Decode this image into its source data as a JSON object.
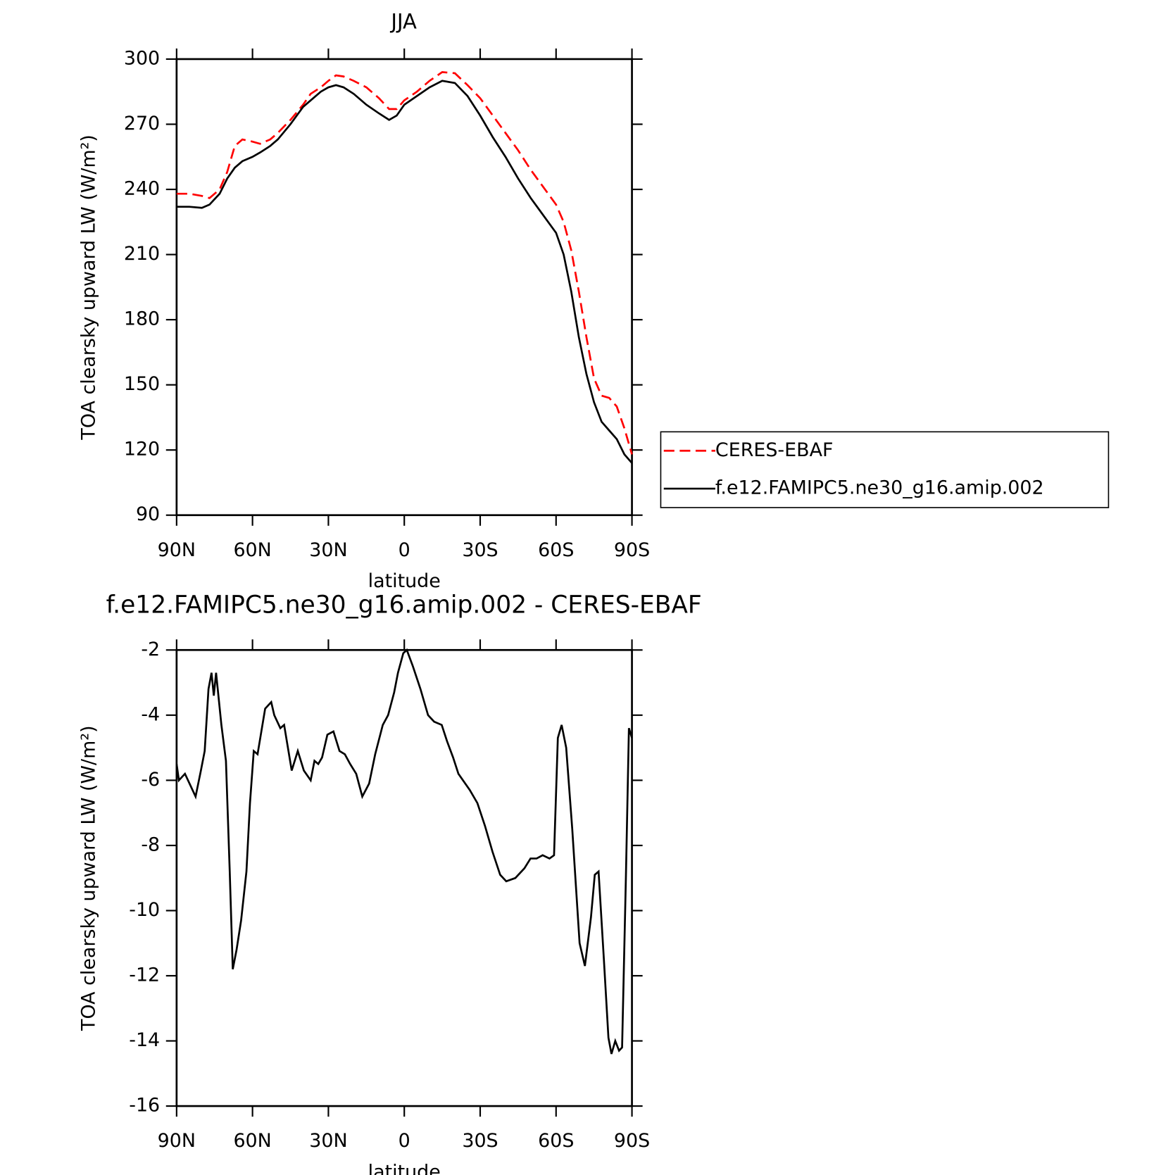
{
  "chart_data": [
    {
      "type": "line",
      "title": "JJA",
      "xlabel": "latitude",
      "ylabel": "TOA clearsky upward LW (W/m²)",
      "xlim": [
        90,
        -90
      ],
      "ylim": [
        90,
        300
      ],
      "xticks": [
        {
          "value": 90,
          "label": "90N"
        },
        {
          "value": 60,
          "label": "60N"
        },
        {
          "value": 30,
          "label": "30N"
        },
        0,
        {
          "value": -30,
          "label": "30S"
        },
        {
          "value": -60,
          "label": "60S"
        },
        {
          "value": -90,
          "label": "90S"
        }
      ],
      "yticks": [
        90,
        120,
        150,
        180,
        210,
        240,
        270,
        300
      ],
      "legend": "right",
      "x": [
        90,
        85,
        80,
        77,
        73,
        70,
        67,
        64,
        60,
        57,
        53,
        50,
        45,
        40,
        37,
        33,
        30,
        27,
        24,
        20,
        15,
        10,
        6,
        3,
        0,
        -5,
        -10,
        -15,
        -20,
        -25,
        -30,
        -35,
        -40,
        -45,
        -50,
        -55,
        -60,
        -63,
        -66,
        -69,
        -72,
        -75,
        -78,
        -81,
        -84,
        -87,
        -90
      ],
      "series": [
        {
          "name": "CERES-EBAF",
          "color": "#ff0000",
          "dashed": true,
          "values": [
            238,
            238,
            237,
            236,
            240,
            248,
            260,
            263,
            262,
            261,
            263,
            266,
            272,
            279,
            284,
            287,
            290,
            292.5,
            292,
            290,
            287,
            282,
            277,
            277,
            281,
            285,
            290,
            294,
            293.5,
            288,
            282,
            274,
            266,
            258,
            249,
            241,
            233,
            225,
            212,
            193,
            172,
            153,
            145,
            144,
            140,
            130,
            118
          ]
        },
        {
          "name": "f.e12.FAMIPC5.ne30_g16.amip.002",
          "color": "#000000",
          "dashed": false,
          "values": [
            232,
            232,
            231.5,
            233,
            238,
            245,
            250,
            253,
            255,
            257,
            260,
            263,
            270,
            278,
            281,
            285,
            287,
            288,
            287,
            284,
            279,
            275,
            272,
            274,
            279,
            283,
            287,
            290,
            289,
            283,
            274,
            264,
            255,
            245,
            236,
            228,
            220,
            210,
            193,
            172,
            155,
            142,
            133,
            129,
            125,
            118,
            114
          ]
        }
      ]
    },
    {
      "type": "line",
      "title": "f.e12.FAMIPC5.ne30_g16.amip.002 - CERES-EBAF",
      "xlabel": "latitude",
      "ylabel": "TOA clearsky upward LW (W/m²)",
      "xlim": [
        90,
        -90
      ],
      "ylim": [
        -16,
        -2
      ],
      "xticks": [
        {
          "value": 90,
          "label": "90N"
        },
        {
          "value": 60,
          "label": "60N"
        },
        {
          "value": 30,
          "label": "30N"
        },
        0,
        {
          "value": -30,
          "label": "30S"
        },
        {
          "value": -60,
          "label": "60S"
        },
        {
          "value": -90,
          "label": "90S"
        }
      ],
      "yticks": [
        -16,
        -14,
        -12,
        -10,
        -8,
        -6,
        -4,
        -2
      ],
      "color": "#000000",
      "x": [
        90,
        89.1,
        86.7,
        84.9,
        82.5,
        80.4,
        78.9,
        77.4,
        76.2,
        75.3,
        74.4,
        72.3,
        70.5,
        69.0,
        67.8,
        66.3,
        64.5,
        62.4,
        61.0,
        59.5,
        58.0,
        56.5,
        55.0,
        52.6,
        51.4,
        49.0,
        47.5,
        44.5,
        42.1,
        39.7,
        37.0,
        35.5,
        34.0,
        32.5,
        30.4,
        28.0,
        25.6,
        23.5,
        21.4,
        19.0,
        16.6,
        13.9,
        11.5,
        8.5,
        6.4,
        4.0,
        2.5,
        0.4,
        -1.0,
        -3.4,
        -6.4,
        -9.4,
        -11.8,
        -14.8,
        -16.9,
        -19.3,
        -21.4,
        -25.9,
        -28.9,
        -31.9,
        -34.9,
        -37.9,
        -40.3,
        -43.9,
        -47.5,
        -49.9,
        -52.3,
        -54.7,
        -57.4,
        -59.2,
        -60.7,
        -62.2,
        -64.0,
        -66.4,
        -69.3,
        -71.4,
        -73.8,
        -75.3,
        -76.8,
        -78.9,
        -80.7,
        -81.9,
        -83.4,
        -84.9,
        -86.1,
        -87.6,
        -88.8,
        -90
      ],
      "values": [
        -5.5,
        -6.0,
        -5.8,
        -6.1,
        -6.5,
        -5.7,
        -5.1,
        -3.2,
        -2.7,
        -3.4,
        -2.7,
        -4.3,
        -5.4,
        -8.8,
        -11.8,
        -11.2,
        -10.3,
        -8.8,
        -6.7,
        -5.1,
        -5.2,
        -4.5,
        -3.8,
        -3.6,
        -4.0,
        -4.4,
        -4.3,
        -5.7,
        -5.1,
        -5.7,
        -6.0,
        -5.4,
        -5.5,
        -5.3,
        -4.6,
        -4.5,
        -5.1,
        -5.2,
        -5.5,
        -5.8,
        -6.5,
        -6.1,
        -5.2,
        -4.3,
        -4.0,
        -3.3,
        -2.7,
        -2.1,
        -2.0,
        -2.5,
        -3.2,
        -4.0,
        -4.2,
        -4.3,
        -4.8,
        -5.3,
        -5.8,
        -6.3,
        -6.7,
        -7.4,
        -8.2,
        -8.9,
        -9.1,
        -9.0,
        -8.7,
        -8.4,
        -8.4,
        -8.3,
        -8.4,
        -8.3,
        -4.7,
        -4.3,
        -5.0,
        -7.5,
        -11.0,
        -11.7,
        -10.2,
        -8.9,
        -8.8,
        -11.5,
        -13.9,
        -14.4,
        -14.0,
        -14.3,
        -14.2,
        -9.0,
        -4.4,
        -4.7
      ]
    }
  ]
}
